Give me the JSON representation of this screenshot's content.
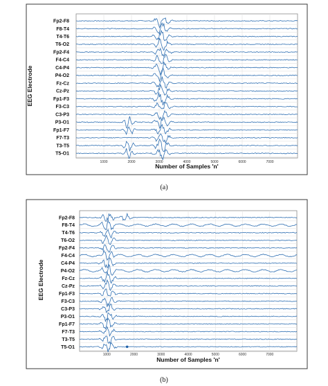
{
  "chart_data": [
    {
      "type": "line",
      "caption": "(a)",
      "xlabel": "Number of Samples 'n'",
      "ylabel": "EEG Electrode",
      "xlim": [
        0,
        8000
      ],
      "x_ticks": [
        1000,
        2000,
        3000,
        4000,
        5000,
        6000,
        7000
      ],
      "x_tick_labels": [
        "1000",
        "2000",
        "3000",
        "4000",
        "5000",
        "6000",
        "7000"
      ],
      "grid": true,
      "channels": [
        "Fp2-F8",
        "F8-T4",
        "T4-T6",
        "T6-O2",
        "Fp2-F4",
        "F4-C4",
        "C4-P4",
        "P4-O2",
        "Fz-Cz",
        "Cz-Pz",
        "Fp1-F3",
        "F3-C3",
        "C3-P3",
        "P3-O1",
        "Fp1-F7",
        "F7-T3",
        "T3-T5",
        "T5-O1"
      ],
      "events": [
        {
          "x_center": 3100,
          "half_width": 250,
          "intensity": 1.0,
          "channels": "all"
        },
        {
          "x_center": 1900,
          "half_width": 180,
          "intensity": 0.9,
          "channels": [
            "P3-O1",
            "Fp1-F7",
            "T3-T5",
            "T5-O1"
          ]
        }
      ]
    },
    {
      "type": "line",
      "caption": "(b)",
      "xlabel": "Number of Samples 'n'",
      "ylabel": "EEG Electrode",
      "xlim": [
        0,
        8000
      ],
      "x_ticks": [
        1000,
        2000,
        3000,
        4000,
        5000,
        6000,
        7000
      ],
      "x_tick_labels": [
        "1000",
        "2000",
        "3000",
        "4000",
        "5000",
        "6000",
        "7000"
      ],
      "grid": true,
      "channels": [
        "Fp2-F8",
        "F8-T4",
        "T4-T6",
        "T6-O2",
        "Fp2-F4",
        "F4-C4",
        "C4-P4",
        "P4-O2",
        "Fz-Cz",
        "Cz-Pz",
        "Fp1-F3",
        "F3-C3",
        "C3-P3",
        "P3-O1",
        "Fp1-F7",
        "F7-T3",
        "T3-T5",
        "T5-O1"
      ],
      "oscillating_channels": [
        "F8-T4",
        "F4-C4",
        "P4-O2"
      ],
      "events": [
        {
          "x_center": 1050,
          "half_width": 220,
          "intensity": 1.0,
          "channels": "all"
        },
        {
          "x_center": 1700,
          "half_width": 200,
          "intensity": 0.6,
          "channels": [
            "Fp2-F8"
          ]
        }
      ],
      "marker": {
        "x": 1750,
        "channel": "T5-O1"
      }
    }
  ]
}
